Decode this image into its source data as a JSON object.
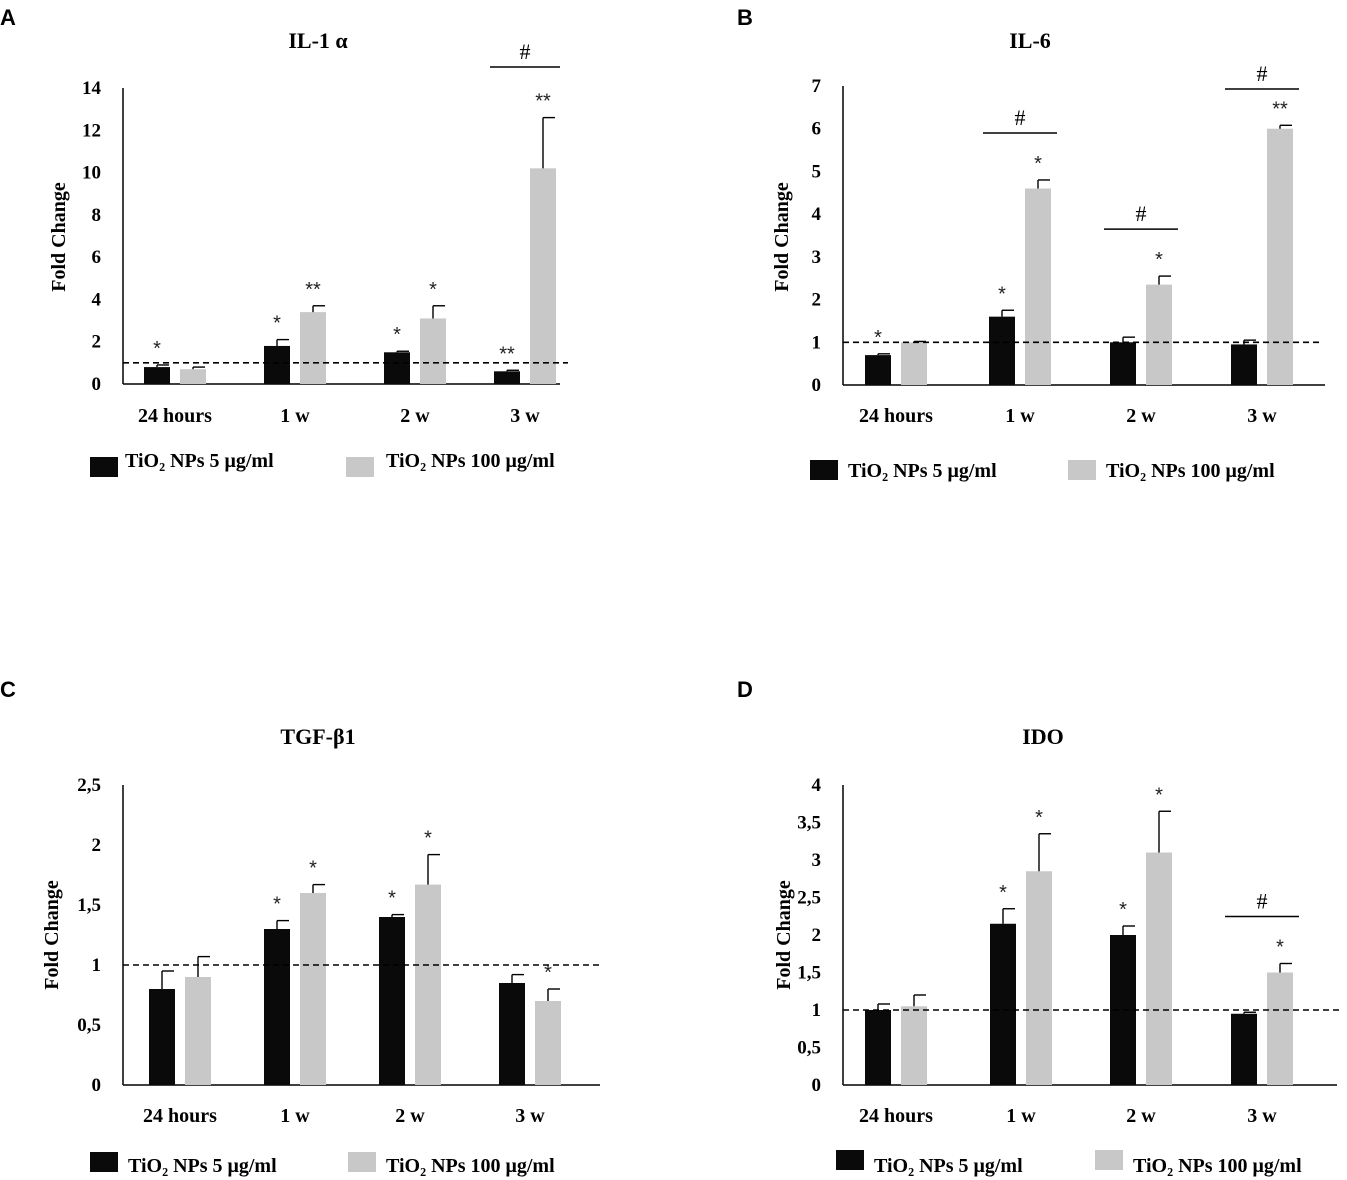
{
  "figure": {
    "colors": {
      "low": "#0a0a0a",
      "high": "#c8c8c8",
      "axis": "#000000",
      "ref": "#000000"
    },
    "legend": {
      "low": "TiO₂ NPs 5 μg/ml",
      "high": "TiO₂ NPs 100 μg/ml"
    },
    "ylabel": "Fold Change"
  },
  "chart_data": [
    {
      "panel": "A",
      "type": "bar",
      "title": "IL-1 α",
      "ylabel": "Fold Change",
      "categories": [
        "24 hours",
        "1 w",
        "2 w",
        "3 w"
      ],
      "ylim": [
        0,
        14
      ],
      "yticks": [
        "0",
        "2",
        "4",
        "6",
        "8",
        "10",
        "12",
        "14"
      ],
      "reference_line": 1,
      "series": [
        {
          "name": "TiO₂ NPs 5 μg/ml",
          "values": [
            0.8,
            1.8,
            1.5,
            0.6
          ],
          "errors": [
            0.1,
            0.3,
            0.05,
            0.05
          ],
          "significance": [
            "*",
            "*",
            "*",
            "**"
          ]
        },
        {
          "name": "TiO₂ NPs 100 μg/ml",
          "values": [
            0.7,
            3.4,
            3.1,
            10.2
          ],
          "errors": [
            0.1,
            0.3,
            0.6,
            2.4
          ],
          "significance": [
            "",
            "**",
            "*",
            "**"
          ]
        }
      ],
      "hash_markers": [
        3
      ]
    },
    {
      "panel": "B",
      "type": "bar",
      "title": "IL-6",
      "ylabel": "Fold Change",
      "categories": [
        "24 hours",
        "1 w",
        "2 w",
        "3 w"
      ],
      "ylim": [
        0,
        7
      ],
      "yticks": [
        "0",
        "1",
        "2",
        "3",
        "4",
        "5",
        "6",
        "7"
      ],
      "reference_line": 1,
      "series": [
        {
          "name": "TiO₂ NPs 5 μg/ml",
          "values": [
            0.7,
            1.6,
            1.0,
            0.95
          ],
          "errors": [
            0.03,
            0.15,
            0.12,
            0.1
          ],
          "significance": [
            "*",
            "*",
            "",
            ""
          ]
        },
        {
          "name": "TiO₂ NPs 100 μg/ml",
          "values": [
            1.0,
            4.6,
            2.35,
            6.0
          ],
          "errors": [
            0.02,
            0.2,
            0.2,
            0.08
          ],
          "significance": [
            "",
            "*",
            "*",
            "**"
          ]
        }
      ],
      "hash_markers": [
        1,
        2,
        3
      ]
    },
    {
      "panel": "C",
      "type": "bar",
      "title": "TGF-β1",
      "ylabel": "Fold Change",
      "categories": [
        "24 hours",
        "1 w",
        "2 w",
        "3 w"
      ],
      "ylim": [
        0,
        2.5
      ],
      "yticks": [
        "0",
        "0,5",
        "1",
        "1,5",
        "2",
        "2,5"
      ],
      "reference_line": 1,
      "series": [
        {
          "name": "TiO₂ NPs 5 μg/ml",
          "values": [
            0.8,
            1.3,
            1.4,
            0.85
          ],
          "errors": [
            0.15,
            0.07,
            0.02,
            0.07
          ],
          "significance": [
            "",
            "*",
            "*",
            ""
          ]
        },
        {
          "name": "TiO₂ NPs 100 μg/ml",
          "values": [
            0.9,
            1.6,
            1.67,
            0.7
          ],
          "errors": [
            0.17,
            0.07,
            0.25,
            0.1
          ],
          "significance": [
            "",
            "*",
            "*",
            "*"
          ]
        }
      ],
      "hash_markers": []
    },
    {
      "panel": "D",
      "type": "bar",
      "title": "IDO",
      "ylabel": "Fold Change",
      "categories": [
        "24 hours",
        "1 w",
        "2 w",
        "3 w"
      ],
      "ylim": [
        0,
        4
      ],
      "yticks": [
        "0",
        "0,5",
        "1",
        "1,5",
        "2",
        "2,5",
        "3",
        "3,5",
        "4"
      ],
      "reference_line": 1,
      "series": [
        {
          "name": "TiO₂ NPs 5 μg/ml",
          "values": [
            1.0,
            2.15,
            2.0,
            0.95
          ],
          "errors": [
            0.08,
            0.2,
            0.12,
            0.02
          ],
          "significance": [
            "",
            "*",
            "*",
            ""
          ]
        },
        {
          "name": "TiO₂ NPs 100 μg/ml",
          "values": [
            1.05,
            2.85,
            3.1,
            1.5
          ],
          "errors": [
            0.15,
            0.5,
            0.55,
            0.12
          ],
          "significance": [
            "",
            "*",
            "*",
            "*"
          ]
        }
      ],
      "hash_markers": [
        3
      ]
    }
  ]
}
